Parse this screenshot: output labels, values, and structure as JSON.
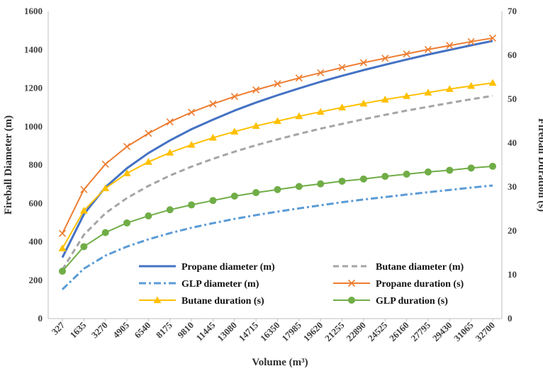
{
  "chart_data": {
    "type": "line",
    "xlabel": "Volume (m³)",
    "ylabel": "Fireball Diameter (m)",
    "y2label": "Fireball Duration (s)",
    "ylim": [
      0,
      1600
    ],
    "y2lim": [
      0,
      70
    ],
    "yticks": [
      0,
      200,
      400,
      600,
      800,
      1000,
      1200,
      1400,
      1600
    ],
    "y2ticks": [
      0,
      10,
      20,
      30,
      40,
      50,
      60,
      70
    ],
    "grid": false,
    "legend_position": "bottom-center",
    "categories": [
      "327",
      "1635",
      "3270",
      "4905",
      "6540",
      "8175",
      "9810",
      "11445",
      "13080",
      "14715",
      "16350",
      "17985",
      "19620",
      "21255",
      "22890",
      "24525",
      "26160",
      "27795",
      "29430",
      "31065",
      "32700"
    ],
    "series": [
      {
        "name": "Propane diameter (m)",
        "axis": "left",
        "color": "#4472C4",
        "dash": "solid",
        "marker": "none",
        "values": [
          318,
          543,
          684,
          783,
          862,
          928,
          986,
          1036,
          1083,
          1125,
          1163,
          1199,
          1233,
          1264,
          1294,
          1322,
          1349,
          1375,
          1399,
          1423,
          1446
        ]
      },
      {
        "name": "Butane diameter (m)",
        "axis": "left",
        "color": "#A5A5A5",
        "dash": "dash",
        "marker": "none",
        "values": [
          255,
          436,
          549,
          628,
          691,
          745,
          791,
          832,
          869,
          903,
          933,
          962,
          989,
          1014,
          1038,
          1061,
          1083,
          1103,
          1123,
          1142,
          1160
        ]
      },
      {
        "name": "GLP diameter (m)",
        "axis": "left",
        "color": "#5B9BD5",
        "dash": "dashdot",
        "marker": "none",
        "values": [
          152,
          260,
          328,
          375,
          413,
          445,
          473,
          497,
          519,
          539,
          557,
          574,
          590,
          606,
          620,
          633,
          646,
          658,
          670,
          682,
          693
        ]
      },
      {
        "name": "Propane duration (s)",
        "axis": "right",
        "color": "#ED7D31",
        "dash": "solid",
        "marker": "x",
        "values": [
          19.4,
          29.4,
          35.2,
          39.2,
          42.2,
          44.8,
          47.0,
          48.9,
          50.6,
          52.1,
          53.5,
          54.8,
          56.0,
          57.2,
          58.3,
          59.3,
          60.3,
          61.3,
          62.2,
          63.1,
          63.9
        ]
      },
      {
        "name": "Butane duration (s)",
        "axis": "right",
        "color": "#FFC000",
        "dash": "solid",
        "marker": "triangle",
        "values": [
          16.0,
          24.6,
          29.7,
          33.1,
          35.7,
          37.8,
          39.6,
          41.2,
          42.6,
          43.9,
          45.0,
          46.1,
          47.1,
          48.1,
          49.0,
          49.9,
          50.7,
          51.5,
          52.3,
          53.0,
          53.7
        ]
      },
      {
        "name": "GLP duration (s)",
        "axis": "right",
        "color": "#70AD47",
        "dash": "solid",
        "marker": "circle",
        "values": [
          10.8,
          16.4,
          19.6,
          21.8,
          23.4,
          24.8,
          25.9,
          26.9,
          27.9,
          28.7,
          29.4,
          30.1,
          30.7,
          31.3,
          31.8,
          32.4,
          32.9,
          33.4,
          33.8,
          34.3,
          34.7
        ]
      }
    ]
  }
}
